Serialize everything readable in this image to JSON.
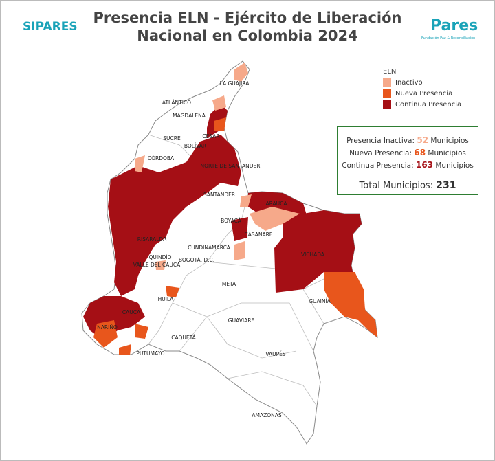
{
  "header": {
    "title_line1": "Presencia ELN - Ejército de Liberación",
    "title_line2": "Nacional en Colombia 2024",
    "logo_left": "SIPARES",
    "logo_right": "Pares",
    "logo_right_sub": "Fundación Paz & Reconciliación"
  },
  "legend": {
    "title": "ELN",
    "items": [
      {
        "label": "Inactivo",
        "color": "#f6a98a"
      },
      {
        "label": "Nueva Presencia",
        "color": "#e8561c"
      },
      {
        "label": "Continua Presencia",
        "color": "#a50f15"
      }
    ]
  },
  "summary": {
    "rows": [
      {
        "label": "Presencia Inactiva:",
        "count": 52,
        "unit": "Municipios",
        "color": "#f6a98a"
      },
      {
        "label": "Nueva Presencia:",
        "count": 68,
        "unit": "Municipios",
        "color": "#e8561c"
      },
      {
        "label": "Continua Presencia:",
        "count": 163,
        "unit": "Municipios",
        "color": "#a50f15"
      }
    ],
    "total_label": "Total Municipios:",
    "total": 231
  },
  "map": {
    "labels": [
      "LA GUAJIRA",
      "ATLÁNTICO",
      "MAGDALENA",
      "CESAR",
      "SUCRE",
      "BOLÍVAR",
      "CÓRDOBA",
      "NORTE DE SANTANDER",
      "SANTANDER",
      "ARAUCA",
      "BOYACÁ",
      "CASANARE",
      "RISARALDA",
      "CUNDINAMARCA",
      "QUINDÍO",
      "VALLE DEL CAUCA",
      "BOGOTÁ, D.C.",
      "VICHADA",
      "META",
      "HUILA",
      "GUAINÍA",
      "GUAVIARE",
      "CAQUETÁ",
      "CAUCA",
      "NARIÑO",
      "PUTUMAYO",
      "VAUPÉS",
      "AMAZONAS"
    ]
  }
}
